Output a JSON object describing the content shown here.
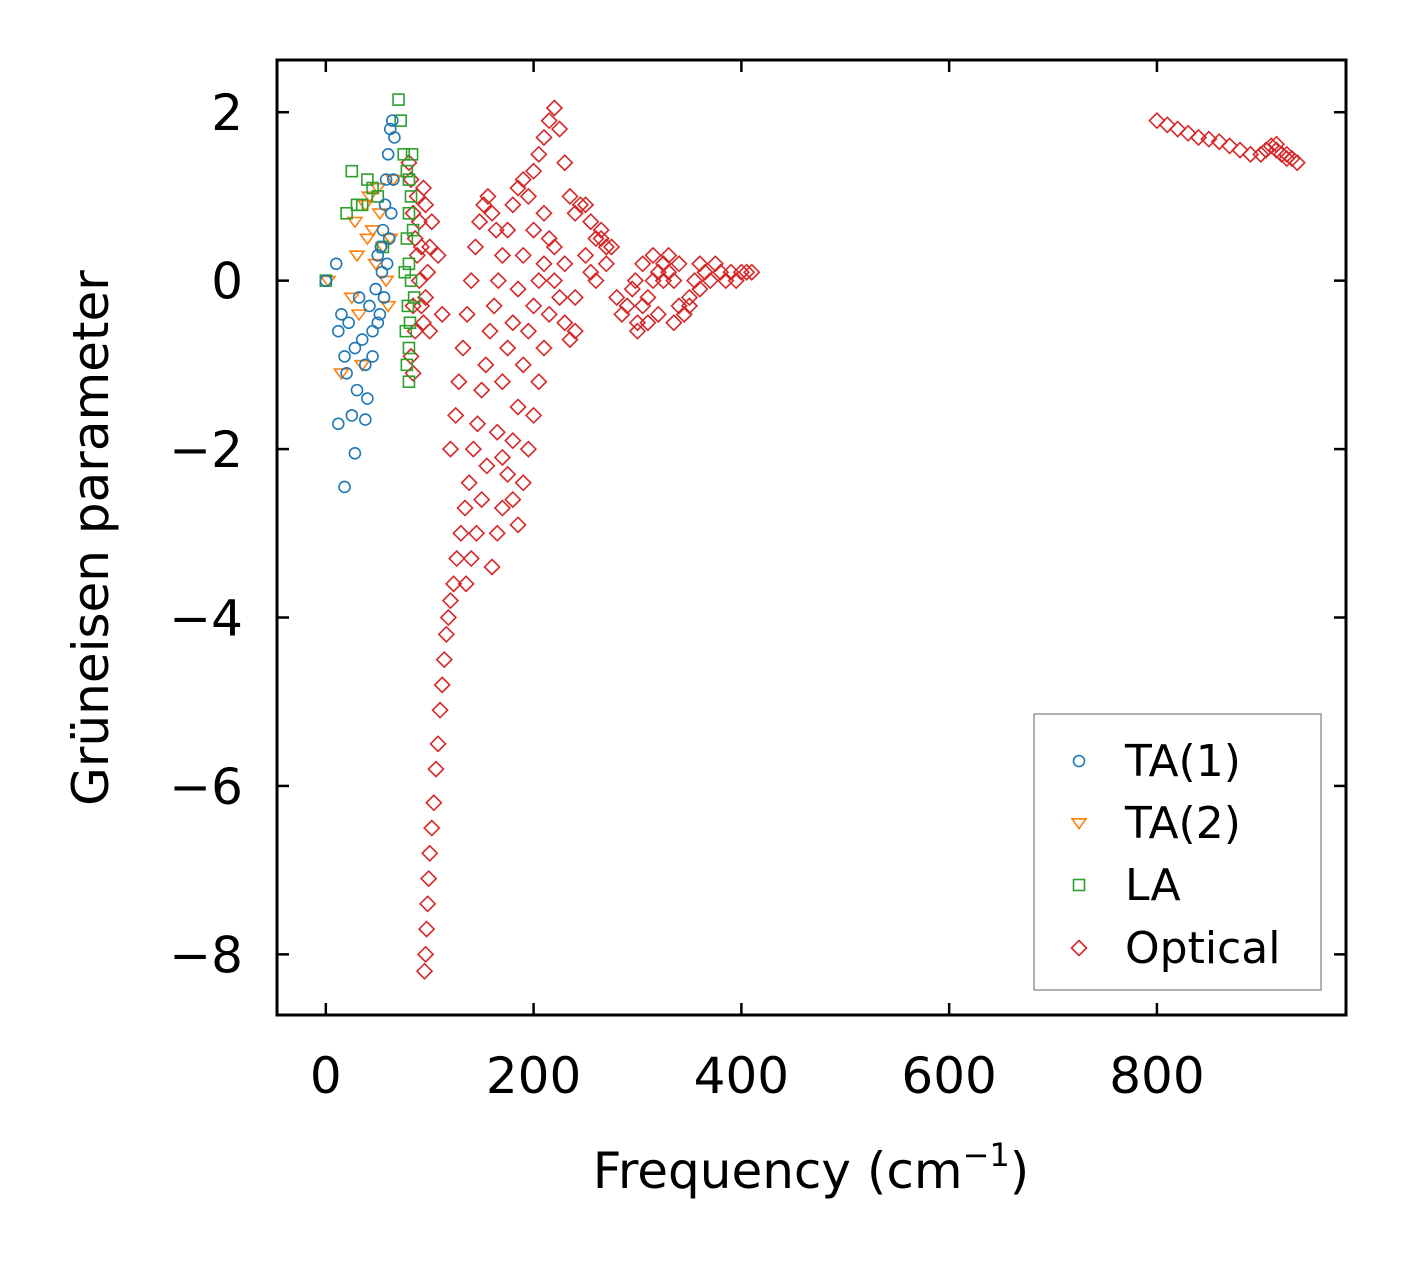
{
  "chart_data": {
    "type": "scatter",
    "xlabel": "Frequency (cm",
    "xlabel_sup": "−1",
    "xlabel_close": ")",
    "ylabel": "Grüneisen parameter",
    "xlim": [
      -47,
      982
    ],
    "ylim": [
      -8.72,
      2.62
    ],
    "xticks": [
      0,
      200,
      400,
      600,
      800
    ],
    "xtick_labels": [
      "0",
      "200",
      "400",
      "600",
      "800"
    ],
    "yticks": [
      2,
      0,
      -2,
      -4,
      -6,
      -8
    ],
    "ytick_labels": [
      "2",
      "0",
      "−2",
      "−4",
      "−6",
      "−8"
    ],
    "legend_position": "lower-right",
    "series": [
      {
        "name": "TA(1)",
        "marker": "circle",
        "color": "#1f77b4",
        "points": [
          [
            0,
            0
          ],
          [
            10,
            0.2
          ],
          [
            12,
            -0.6
          ],
          [
            15,
            -0.4
          ],
          [
            18,
            -0.9
          ],
          [
            20,
            -1.1
          ],
          [
            22,
            -0.5
          ],
          [
            25,
            -1.6
          ],
          [
            28,
            -0.8
          ],
          [
            30,
            -1.3
          ],
          [
            32,
            -0.2
          ],
          [
            35,
            -0.7
          ],
          [
            38,
            -1.0
          ],
          [
            40,
            -1.4
          ],
          [
            42,
            -0.3
          ],
          [
            45,
            -0.6
          ],
          [
            48,
            -0.1
          ],
          [
            50,
            0.3
          ],
          [
            52,
            -0.4
          ],
          [
            55,
            0.6
          ],
          [
            57,
            0.9
          ],
          [
            58,
            1.2
          ],
          [
            60,
            1.5
          ],
          [
            62,
            1.8
          ],
          [
            64,
            1.9
          ],
          [
            66,
            1.7
          ],
          [
            65,
            1.2
          ],
          [
            63,
            0.8
          ],
          [
            61,
            0.5
          ],
          [
            59,
            0.2
          ],
          [
            56,
            -0.2
          ],
          [
            54,
            0.1
          ],
          [
            53,
            0.4
          ],
          [
            12,
            -1.7
          ],
          [
            18,
            -2.45
          ],
          [
            28,
            -2.05
          ],
          [
            38,
            -1.65
          ],
          [
            45,
            -0.9
          ],
          [
            50,
            -0.5
          ]
        ]
      },
      {
        "name": "TA(2)",
        "marker": "triangle-down",
        "color": "#ff7f0e",
        "points": [
          [
            2,
            0
          ],
          [
            15,
            -1.1
          ],
          [
            25,
            -0.2
          ],
          [
            28,
            0.7
          ],
          [
            30,
            0.3
          ],
          [
            32,
            -0.4
          ],
          [
            35,
            -1.0
          ],
          [
            38,
            0.9
          ],
          [
            40,
            0.5
          ],
          [
            42,
            1.0
          ],
          [
            45,
            0.6
          ],
          [
            48,
            0.2
          ],
          [
            50,
            1.1
          ],
          [
            52,
            0.8
          ],
          [
            55,
            0.4
          ],
          [
            58,
            0.0
          ],
          [
            60,
            -0.3
          ],
          [
            62,
            0.5
          ],
          [
            65,
            1.2
          ]
        ]
      },
      {
        "name": "LA",
        "marker": "square",
        "color": "#2ca02c",
        "points": [
          [
            0,
            0
          ],
          [
            20,
            0.8
          ],
          [
            25,
            1.3
          ],
          [
            30,
            0.9
          ],
          [
            35,
            0.9
          ],
          [
            40,
            1.2
          ],
          [
            45,
            1.1
          ],
          [
            50,
            1.0
          ],
          [
            55,
            0.4
          ],
          [
            70,
            2.15
          ],
          [
            72,
            1.9
          ],
          [
            75,
            1.5
          ],
          [
            78,
            1.3
          ],
          [
            80,
            1.2
          ],
          [
            82,
            1.0
          ],
          [
            80,
            0.8
          ],
          [
            78,
            0.5
          ],
          [
            80,
            0.2
          ],
          [
            82,
            0.0
          ],
          [
            79,
            -0.3
          ],
          [
            81,
            -0.5
          ],
          [
            80,
            -0.8
          ],
          [
            78,
            -1.0
          ],
          [
            80,
            -1.2
          ],
          [
            83,
            1.5
          ],
          [
            84,
            0.6
          ],
          [
            85,
            -0.2
          ],
          [
            76,
            0.1
          ],
          [
            77,
            -0.6
          ]
        ]
      },
      {
        "name": "Optical",
        "marker": "diamond",
        "color": "#d62728",
        "points": [
          [
            95,
            -8.2
          ],
          [
            96,
            -8.0
          ],
          [
            97,
            -7.7
          ],
          [
            98,
            -7.4
          ],
          [
            99,
            -7.1
          ],
          [
            100,
            -6.8
          ],
          [
            102,
            -6.5
          ],
          [
            104,
            -6.2
          ],
          [
            106,
            -5.8
          ],
          [
            108,
            -5.5
          ],
          [
            110,
            -5.1
          ],
          [
            112,
            -4.8
          ],
          [
            114,
            -4.5
          ],
          [
            116,
            -4.2
          ],
          [
            118,
            -4.0
          ],
          [
            120,
            -3.8
          ],
          [
            123,
            -3.6
          ],
          [
            126,
            -3.3
          ],
          [
            130,
            -3.0
          ],
          [
            134,
            -2.7
          ],
          [
            138,
            -2.4
          ],
          [
            142,
            -2.0
          ],
          [
            146,
            -1.7
          ],
          [
            150,
            -1.3
          ],
          [
            154,
            -1.0
          ],
          [
            158,
            -0.6
          ],
          [
            162,
            -0.3
          ],
          [
            166,
            0.0
          ],
          [
            170,
            0.3
          ],
          [
            175,
            0.6
          ],
          [
            180,
            0.9
          ],
          [
            185,
            1.1
          ],
          [
            190,
            1.2
          ],
          [
            195,
            1.0
          ],
          [
            200,
            1.3
          ],
          [
            205,
            1.5
          ],
          [
            210,
            1.7
          ],
          [
            215,
            1.9
          ],
          [
            220,
            2.05
          ],
          [
            225,
            1.8
          ],
          [
            230,
            1.4
          ],
          [
            235,
            1.0
          ],
          [
            240,
            0.8
          ],
          [
            245,
            0.9
          ],
          [
            250,
            0.9
          ],
          [
            255,
            0.7
          ],
          [
            260,
            0.5
          ],
          [
            265,
            0.5
          ],
          [
            270,
            0.4
          ],
          [
            275,
            0.4
          ],
          [
            160,
            -3.4
          ],
          [
            165,
            -3.0
          ],
          [
            170,
            -2.7
          ],
          [
            175,
            -2.3
          ],
          [
            180,
            -1.9
          ],
          [
            185,
            -1.5
          ],
          [
            190,
            -1.0
          ],
          [
            195,
            -0.6
          ],
          [
            200,
            -0.3
          ],
          [
            205,
            0.0
          ],
          [
            210,
            0.2
          ],
          [
            215,
            0.5
          ],
          [
            220,
            0.0
          ],
          [
            225,
            -0.2
          ],
          [
            230,
            -0.5
          ],
          [
            235,
            -0.7
          ],
          [
            240,
            -0.6
          ],
          [
            170,
            -1.2
          ],
          [
            175,
            -0.8
          ],
          [
            180,
            -0.5
          ],
          [
            185,
            -0.1
          ],
          [
            190,
            0.3
          ],
          [
            200,
            0.6
          ],
          [
            210,
            0.8
          ],
          [
            150,
            -2.6
          ],
          [
            155,
            -2.2
          ],
          [
            145,
            -3.0
          ],
          [
            140,
            -3.3
          ],
          [
            135,
            -3.6
          ],
          [
            165,
            -1.8
          ],
          [
            170,
            -2.1
          ],
          [
            180,
            -2.6
          ],
          [
            185,
            -2.9
          ],
          [
            190,
            -2.4
          ],
          [
            195,
            -2.0
          ],
          [
            200,
            -1.6
          ],
          [
            205,
            -1.2
          ],
          [
            210,
            -0.8
          ],
          [
            215,
            -0.4
          ],
          [
            220,
            0.4
          ],
          [
            230,
            0.2
          ],
          [
            240,
            -0.2
          ],
          [
            250,
            0.3
          ],
          [
            255,
            0.1
          ],
          [
            260,
            0.0
          ],
          [
            265,
            0.6
          ],
          [
            270,
            0.2
          ],
          [
            280,
            -0.2
          ],
          [
            285,
            -0.4
          ],
          [
            290,
            -0.3
          ],
          [
            295,
            -0.1
          ],
          [
            300,
            -0.5
          ],
          [
            305,
            -0.3
          ],
          [
            310,
            -0.2
          ],
          [
            315,
            0.0
          ],
          [
            320,
            0.1
          ],
          [
            325,
            0.2
          ],
          [
            330,
            0.3
          ],
          [
            335,
            0.0
          ],
          [
            340,
            -0.3
          ],
          [
            345,
            -0.4
          ],
          [
            350,
            -0.2
          ],
          [
            355,
            0.0
          ],
          [
            360,
            0.2
          ],
          [
            365,
            0.1
          ],
          [
            370,
            0.0
          ],
          [
            375,
            0.2
          ],
          [
            380,
            0.1
          ],
          [
            385,
            0.0
          ],
          [
            390,
            0.1
          ],
          [
            395,
            0.0
          ],
          [
            400,
            0.1
          ],
          [
            405,
            0.1
          ],
          [
            410,
            0.1
          ],
          [
            310,
            -0.5
          ],
          [
            320,
            -0.4
          ],
          [
            330,
            0.1
          ],
          [
            340,
            0.2
          ],
          [
            350,
            -0.3
          ],
          [
            360,
            -0.1
          ],
          [
            300,
            -0.6
          ],
          [
            298,
            0.0
          ],
          [
            305,
            0.2
          ],
          [
            315,
            0.3
          ],
          [
            325,
            0.0
          ],
          [
            335,
            -0.5
          ],
          [
            80,
            1.4
          ],
          [
            82,
            1.2
          ],
          [
            84,
            0.8
          ],
          [
            86,
            0.5
          ],
          [
            88,
            0.3
          ],
          [
            90,
            0.0
          ],
          [
            92,
            -0.3
          ],
          [
            94,
            -0.5
          ],
          [
            96,
            -0.2
          ],
          [
            98,
            0.1
          ],
          [
            100,
            0.4
          ],
          [
            102,
            0.7
          ],
          [
            100,
            -0.6
          ],
          [
            88,
            1.0
          ],
          [
            90,
            0.7
          ],
          [
            92,
            0.4
          ],
          [
            94,
            1.1
          ],
          [
            96,
            0.9
          ],
          [
            84,
            -0.3
          ],
          [
            86,
            -0.6
          ],
          [
            82,
            -0.9
          ],
          [
            84,
            -1.1
          ],
          [
            108,
            0.3
          ],
          [
            112,
            -0.4
          ],
          [
            120,
            -2.0
          ],
          [
            125,
            -1.6
          ],
          [
            128,
            -1.2
          ],
          [
            132,
            -0.8
          ],
          [
            136,
            -0.4
          ],
          [
            140,
            0.0
          ],
          [
            144,
            0.4
          ],
          [
            148,
            0.7
          ],
          [
            152,
            0.9
          ],
          [
            156,
            1.0
          ],
          [
            160,
            0.8
          ],
          [
            164,
            0.6
          ],
          [
            800,
            1.9
          ],
          [
            810,
            1.85
          ],
          [
            820,
            1.8
          ],
          [
            830,
            1.75
          ],
          [
            840,
            1.7
          ],
          [
            850,
            1.68
          ],
          [
            860,
            1.65
          ],
          [
            870,
            1.6
          ],
          [
            880,
            1.55
          ],
          [
            890,
            1.5
          ],
          [
            900,
            1.5
          ],
          [
            905,
            1.55
          ],
          [
            910,
            1.6
          ],
          [
            915,
            1.55
          ],
          [
            920,
            1.5
          ],
          [
            925,
            1.45
          ],
          [
            930,
            1.45
          ],
          [
            935,
            1.4
          ],
          [
            925,
            1.5
          ],
          [
            915,
            1.62
          ]
        ]
      }
    ]
  }
}
